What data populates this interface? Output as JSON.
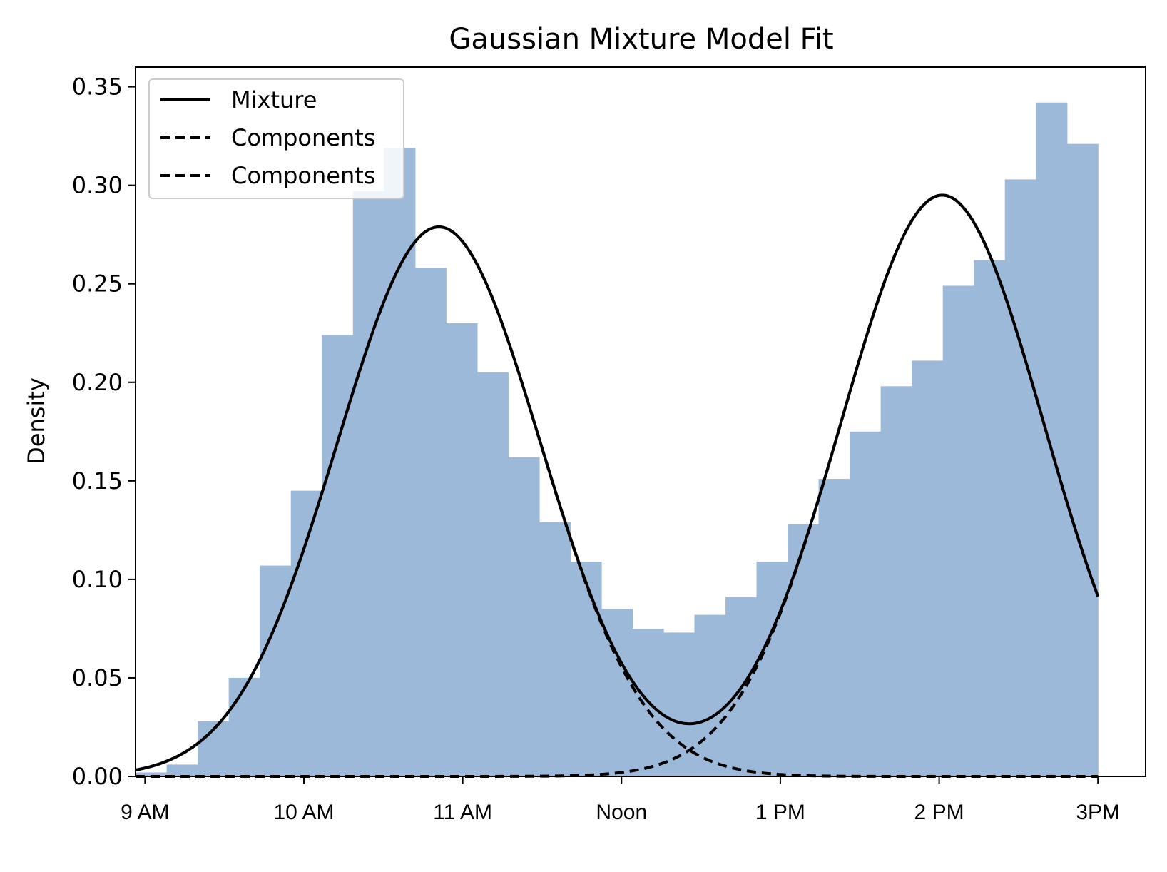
{
  "chart_data": {
    "type": "bar",
    "title": "Gaussian Mixture Model Fit",
    "xlabel": "",
    "ylabel": "Density",
    "xlim": [
      8.94,
      15.3
    ],
    "ylim": [
      0,
      0.36
    ],
    "grid": false,
    "legend_position": "top-left",
    "x_ticks": [
      {
        "value": 9,
        "label": "9 AM"
      },
      {
        "value": 10,
        "label": "10 AM"
      },
      {
        "value": 11,
        "label": "11 AM"
      },
      {
        "value": 12,
        "label": "Noon"
      },
      {
        "value": 13,
        "label": "1 PM"
      },
      {
        "value": 14,
        "label": "2 PM"
      },
      {
        "value": 15,
        "label": "3PM"
      }
    ],
    "y_ticks": [
      {
        "value": 0.0,
        "label": "0.00"
      },
      {
        "value": 0.05,
        "label": "0.05"
      },
      {
        "value": 0.1,
        "label": "0.10"
      },
      {
        "value": 0.15,
        "label": "0.15"
      },
      {
        "value": 0.2,
        "label": "0.20"
      },
      {
        "value": 0.25,
        "label": "0.25"
      },
      {
        "value": 0.3,
        "label": "0.30"
      },
      {
        "value": 0.35,
        "label": "0.35"
      }
    ],
    "histogram": {
      "color": "#9db9d9",
      "bin_edges": [
        8.94,
        9.136,
        9.331,
        9.527,
        9.722,
        9.918,
        10.113,
        10.309,
        10.504,
        10.7,
        10.895,
        11.091,
        11.286,
        11.482,
        11.677,
        11.873,
        12.068,
        12.264,
        12.459,
        12.655,
        12.85,
        13.046,
        13.241,
        13.437,
        13.632,
        13.828,
        14.023,
        14.219,
        14.414,
        14.61,
        14.805,
        15.0
      ],
      "densities": [
        0.002,
        0.006,
        0.028,
        0.05,
        0.107,
        0.145,
        0.224,
        0.297,
        0.319,
        0.258,
        0.23,
        0.205,
        0.162,
        0.129,
        0.109,
        0.085,
        0.075,
        0.073,
        0.082,
        0.091,
        0.109,
        0.128,
        0.151,
        0.175,
        0.198,
        0.211,
        0.249,
        0.262,
        0.303,
        0.342,
        0.321
      ]
    },
    "components": [
      {
        "weight": 0.4474,
        "mean": 10.85,
        "sd": 0.64
      },
      {
        "weight": 0.4733,
        "mean": 14.02,
        "sd": 0.64
      }
    ],
    "mixture_x_range": [
      8.94,
      15.0
    ],
    "series": [
      {
        "name": "Mixture",
        "style": "solid",
        "color": "#000000"
      },
      {
        "name": "Components",
        "style": "dashed",
        "color": "#000000"
      },
      {
        "name": "Components",
        "style": "dashed",
        "color": "#000000"
      }
    ]
  }
}
